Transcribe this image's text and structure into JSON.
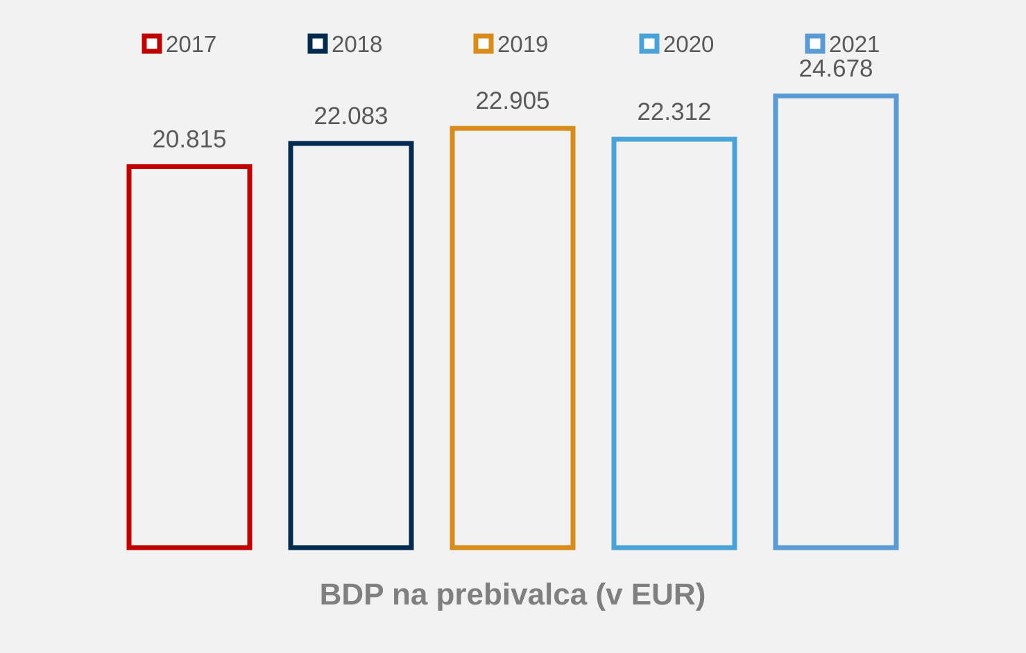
{
  "chart_data": {
    "type": "bar",
    "categories": [
      "BDP na prebivalca (v EUR)"
    ],
    "series": [
      {
        "name": "2017",
        "values": [
          20815
        ],
        "label": "20.815",
        "color": "#c00000"
      },
      {
        "name": "2018",
        "values": [
          22083
        ],
        "label": "22.083",
        "color": "#002a4e"
      },
      {
        "name": "2019",
        "values": [
          22905
        ],
        "label": "22.905",
        "color": "#d98b1b"
      },
      {
        "name": "2020",
        "values": [
          22312
        ],
        "label": "22.312",
        "color": "#4aa3d8"
      },
      {
        "name": "2021",
        "values": [
          24678
        ],
        "label": "24.678",
        "color": "#5b9bd5"
      }
    ],
    "xlabel": "BDP na prebivalca (v EUR)",
    "ylabel": "",
    "ylim": [
      0,
      26000
    ],
    "legend_position": "top",
    "grid": false,
    "bar_style": "outlined",
    "background": "#f2f2f2"
  }
}
